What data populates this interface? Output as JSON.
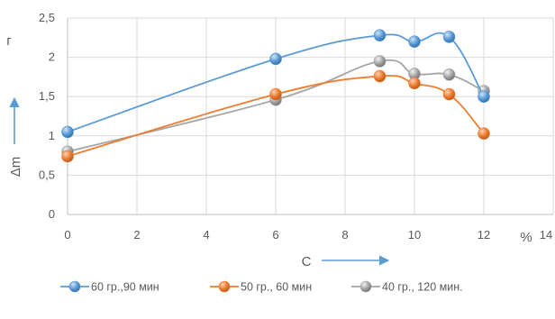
{
  "chart_data": {
    "type": "line",
    "title": "",
    "xlabel": "C",
    "xunit": "%",
    "ylabel": "Δm",
    "yunit": "г",
    "xlim": [
      0,
      14
    ],
    "ylim": [
      0,
      2.5
    ],
    "x_ticks": [
      0,
      2,
      4,
      6,
      8,
      10,
      12,
      14
    ],
    "x_tick_labels": [
      "0",
      "2",
      "4",
      "6",
      "8",
      "10",
      "12",
      "14"
    ],
    "y_ticks": [
      0,
      0.5,
      1,
      1.5,
      2,
      2.5
    ],
    "y_tick_labels": [
      "0",
      "0,5",
      "1",
      "1,5",
      "2",
      "2,5"
    ],
    "grid": true,
    "legend_position": "bottom",
    "series": [
      {
        "name": "60 гр.,90 мин",
        "color": "#5b9bd5",
        "x": [
          0,
          6,
          9,
          10,
          11,
          12
        ],
        "y": [
          1.05,
          1.98,
          2.28,
          2.2,
          2.26,
          1.5
        ]
      },
      {
        "name": "50 гр., 60 мин",
        "color": "#ed7d31",
        "x": [
          0,
          6,
          9,
          10,
          11,
          12
        ],
        "y": [
          0.74,
          1.53,
          1.76,
          1.67,
          1.53,
          1.03
        ]
      },
      {
        "name": "40 гр., 120 мин.",
        "color": "#a5a5a5",
        "x": [
          0,
          6,
          9,
          10,
          11,
          12
        ],
        "y": [
          0.8,
          1.46,
          1.95,
          1.79,
          1.78,
          1.57
        ]
      }
    ]
  }
}
